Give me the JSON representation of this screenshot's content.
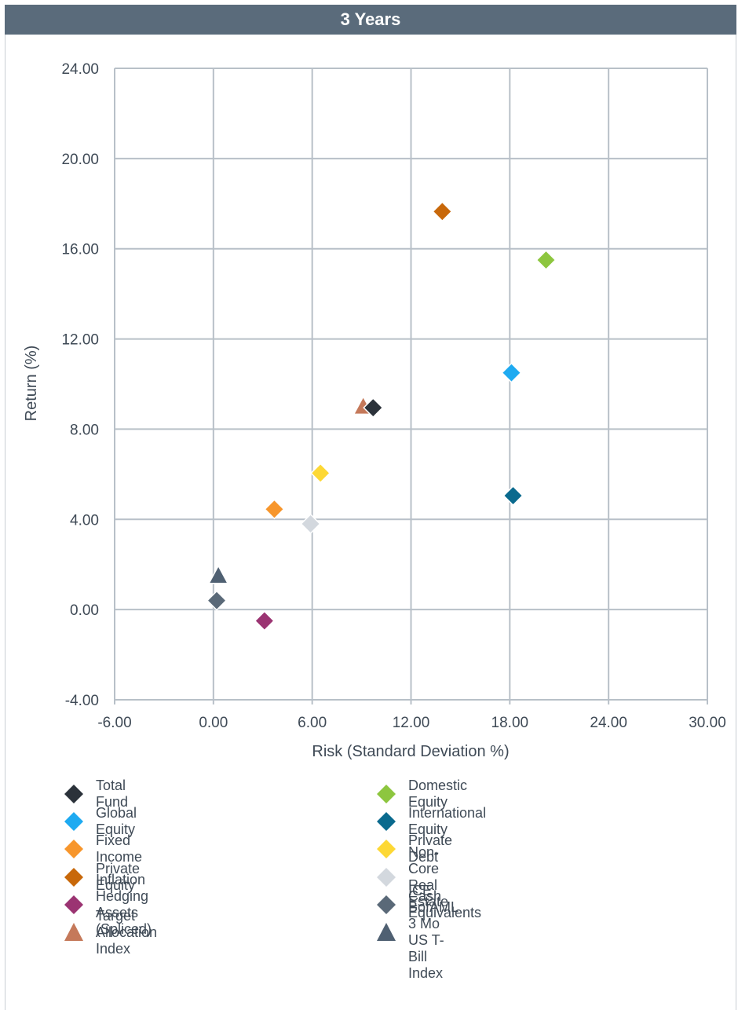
{
  "panel": {
    "title": "3 Years"
  },
  "chart_data": {
    "type": "scatter",
    "title": "3 Years",
    "xlabel": "Risk (Standard Deviation %)",
    "ylabel": "Return (%)",
    "xlim": [
      -6,
      30
    ],
    "ylim": [
      -4,
      24
    ],
    "x_ticks": [
      "-6.00",
      "0.00",
      "6.00",
      "12.00",
      "18.00",
      "24.00",
      "30.00"
    ],
    "y_ticks": [
      "24.00",
      "20.00",
      "16.00",
      "12.00",
      "8.00",
      "4.00",
      "0.00",
      "-4.00"
    ],
    "grid": true,
    "legend_position": "bottom",
    "series": [
      {
        "name": "Total Fund",
        "x": 9.7,
        "y": 8.95,
        "marker": "diamond",
        "color": "#2b323a"
      },
      {
        "name": "Domestic Equity",
        "x": 20.2,
        "y": 15.5,
        "marker": "diamond",
        "color": "#8dc63f"
      },
      {
        "name": "Global Equity",
        "x": 18.1,
        "y": 10.5,
        "marker": "diamond",
        "color": "#1eaaf1"
      },
      {
        "name": "International Equity",
        "x": 18.2,
        "y": 5.05,
        "marker": "diamond",
        "color": "#0a6a8e"
      },
      {
        "name": "Fixed Income",
        "x": 3.7,
        "y": 4.45,
        "marker": "diamond",
        "color": "#f7962c"
      },
      {
        "name": "Private Debt",
        "x": 6.5,
        "y": 6.05,
        "marker": "diamond",
        "color": "#fdd835"
      },
      {
        "name": "Private Equity",
        "x": 13.9,
        "y": 17.65,
        "marker": "diamond",
        "color": "#c8680a"
      },
      {
        "name": "Non-Core Real Estate",
        "x": 5.9,
        "y": 3.8,
        "marker": "diamond",
        "color": "#d3d8de"
      },
      {
        "name": "Inflation Hedging Assets (Spliced)",
        "x": 3.1,
        "y": -0.5,
        "marker": "diamond",
        "color": "#9b3472"
      },
      {
        "name": "Cash Equivalents",
        "x": 0.2,
        "y": 0.4,
        "marker": "diamond",
        "color": "#5a6978"
      },
      {
        "name": "Target Allocation Index",
        "x": 9.1,
        "y": 8.95,
        "marker": "triangle",
        "color": "#c5795a"
      },
      {
        "name": "ICE BofAML 3 Mo US T-Bill Index",
        "x": 0.3,
        "y": 1.45,
        "marker": "triangle",
        "color": "#4f6072"
      }
    ]
  }
}
